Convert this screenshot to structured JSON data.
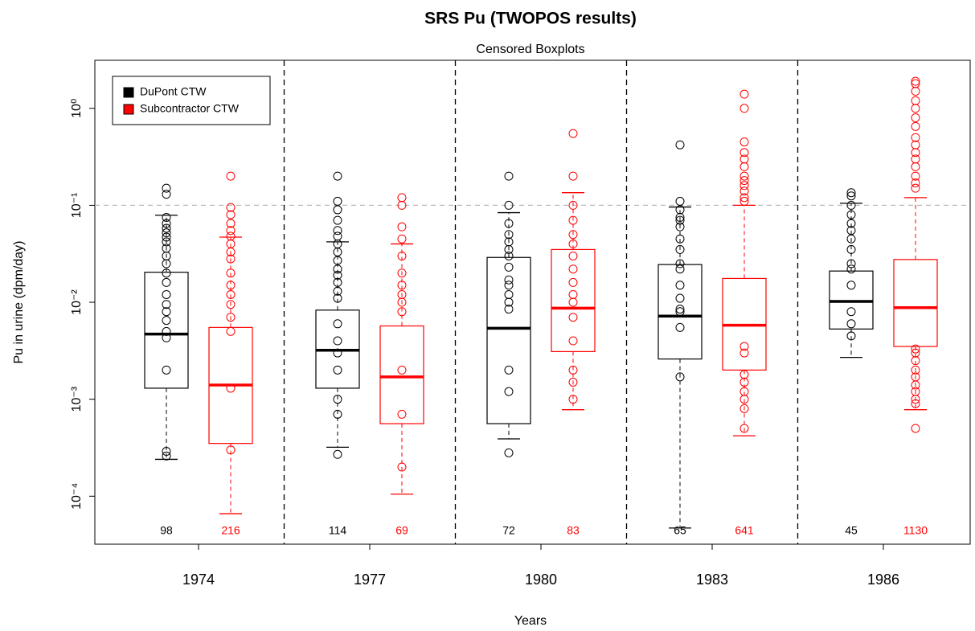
{
  "chart_data": {
    "type": "boxplot",
    "title": "SRS Pu (TWOPOS results)",
    "subtitle": "Censored Boxplots",
    "x_label": "Years",
    "y_label": "Pu in urine (dpm/day)",
    "categories": [
      "1974",
      "1977",
      "1980",
      "1983",
      "1986"
    ],
    "log_y": true,
    "ylim": [
      3.2e-05,
      3.13
    ],
    "yticks": [
      {
        "value": 1,
        "label": "10⁰"
      },
      {
        "value": 0.1,
        "label": "10⁻¹"
      },
      {
        "value": 0.01,
        "label": "10⁻²"
      },
      {
        "value": 0.001,
        "label": "10⁻³"
      },
      {
        "value": 0.0001,
        "label": "10⁻⁴"
      }
    ],
    "reference_line": 0.1,
    "legend": "top-left",
    "series": [
      {
        "name": "DuPont CTW",
        "color": "#000000",
        "boxes": [
          {
            "whislo": 0.00024,
            "q1": 0.0013,
            "med": 0.0047,
            "q3": 0.0204,
            "whishi": 0.079,
            "n": 98,
            "outliers": [
              0.15,
              0.13,
              0.075,
              0.065,
              0.058,
              0.052,
              0.047,
              0.042,
              0.036,
              0.03,
              0.025,
              0.02,
              0.016,
              0.012,
              0.0095,
              0.008,
              0.0065,
              0.005,
              0.0043,
              0.002,
              0.00029,
              0.00026
            ]
          },
          {
            "whislo": 0.00032,
            "q1": 0.0013,
            "med": 0.0032,
            "q3": 0.0083,
            "whishi": 0.042,
            "n": 114,
            "outliers": [
              0.2,
              0.11,
              0.09,
              0.07,
              0.055,
              0.048,
              0.04,
              0.033,
              0.027,
              0.022,
              0.019,
              0.016,
              0.013,
              0.011,
              0.006,
              0.004,
              0.003,
              0.002,
              0.001,
              0.0007,
              0.00027
            ]
          },
          {
            "whislo": 0.00039,
            "q1": 0.00056,
            "med": 0.0054,
            "q3": 0.029,
            "whishi": 0.084,
            "n": 72,
            "outliers": [
              0.2,
              0.1,
              0.065,
              0.05,
              0.042,
              0.035,
              0.03,
              0.023,
              0.017,
              0.015,
              0.012,
              0.01,
              0.0085,
              0.002,
              0.0012,
              0.00028
            ]
          },
          {
            "whislo": 4.7e-05,
            "q1": 0.0026,
            "med": 0.0072,
            "q3": 0.0245,
            "whishi": 0.096,
            "n": 65,
            "outliers": [
              0.42,
              0.11,
              0.09,
              0.075,
              0.07,
              0.06,
              0.045,
              0.035,
              0.025,
              0.022,
              0.015,
              0.011,
              0.0085,
              0.008,
              0.0055,
              0.0017
            ]
          },
          {
            "whislo": 0.0027,
            "q1": 0.0053,
            "med": 0.0102,
            "q3": 0.021,
            "whishi": 0.105,
            "n": 45,
            "outliers": [
              0.135,
              0.125,
              0.1,
              0.08,
              0.065,
              0.055,
              0.045,
              0.035,
              0.025,
              0.022,
              0.015,
              0.008,
              0.006,
              0.0045
            ]
          }
        ]
      },
      {
        "name": "Subcontractor CTW",
        "color": "#ff0000",
        "boxes": [
          {
            "whislo": 6.6e-05,
            "q1": 0.00035,
            "med": 0.0014,
            "q3": 0.0055,
            "whishi": 0.047,
            "n": 216,
            "outliers": [
              0.2,
              0.095,
              0.08,
              0.065,
              0.055,
              0.048,
              0.04,
              0.033,
              0.028,
              0.02,
              0.015,
              0.012,
              0.0095,
              0.007,
              0.005,
              0.0013,
              0.0003
            ]
          },
          {
            "whislo": 0.000105,
            "q1": 0.00056,
            "med": 0.0017,
            "q3": 0.0057,
            "whishi": 0.04,
            "n": 69,
            "outliers": [
              0.12,
              0.1,
              0.06,
              0.045,
              0.03,
              0.02,
              0.015,
              0.012,
              0.01,
              0.008,
              0.002,
              0.0007,
              0.0002
            ]
          },
          {
            "whislo": 0.00078,
            "q1": 0.0031,
            "med": 0.0087,
            "q3": 0.035,
            "whishi": 0.135,
            "n": 83,
            "outliers": [
              0.55,
              0.2,
              0.1,
              0.07,
              0.05,
              0.04,
              0.03,
              0.022,
              0.016,
              0.012,
              0.01,
              0.007,
              0.004,
              0.002,
              0.0015,
              0.001
            ]
          },
          {
            "whislo": 0.00042,
            "q1": 0.002,
            "med": 0.0058,
            "q3": 0.0176,
            "whishi": 0.1,
            "n": 641,
            "outliers": [
              1.4,
              1.0,
              0.45,
              0.35,
              0.3,
              0.25,
              0.2,
              0.18,
              0.16,
              0.14,
              0.12,
              0.11,
              0.0035,
              0.003,
              0.0018,
              0.0015,
              0.0012,
              0.001,
              0.0008,
              0.0005
            ]
          },
          {
            "whislo": 0.00078,
            "q1": 0.0035,
            "med": 0.0088,
            "q3": 0.0276,
            "whishi": 0.12,
            "n": 1130,
            "outliers": [
              1.9,
              1.8,
              1.5,
              1.2,
              1.0,
              0.8,
              0.65,
              0.5,
              0.42,
              0.35,
              0.3,
              0.25,
              0.2,
              0.17,
              0.15,
              0.0033,
              0.003,
              0.0025,
              0.002,
              0.0017,
              0.0014,
              0.0012,
              0.001,
              0.0009,
              0.0005
            ]
          }
        ]
      }
    ]
  }
}
